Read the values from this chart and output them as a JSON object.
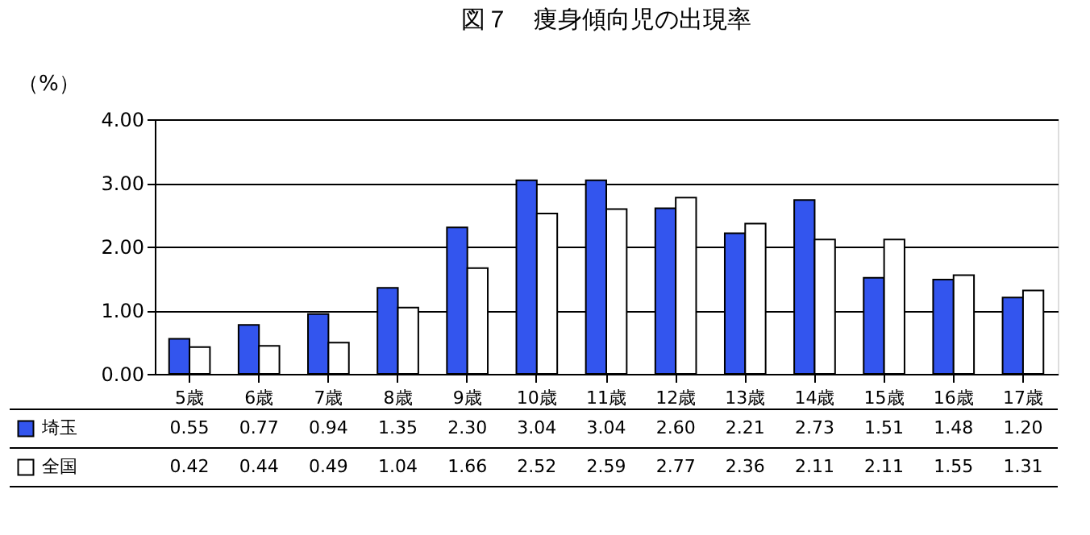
{
  "chart_data": {
    "type": "bar",
    "title": "図７　痩身傾向児の出現率",
    "ylabel": "（%）",
    "categories": [
      "5歳",
      "6歳",
      "7歳",
      "8歳",
      "9歳",
      "10歳",
      "11歳",
      "12歳",
      "13歳",
      "14歳",
      "15歳",
      "16歳",
      "17歳"
    ],
    "series": [
      {
        "name": "埼玉",
        "color": "#3355ee",
        "values": [
          0.55,
          0.77,
          0.94,
          1.35,
          2.3,
          3.04,
          3.04,
          2.6,
          2.21,
          2.73,
          1.51,
          1.48,
          1.2
        ],
        "value_labels": [
          "0.55",
          "0.77",
          "0.94",
          "1.35",
          "2.30",
          "3.04",
          "3.04",
          "2.60",
          "2.21",
          "2.73",
          "1.51",
          "1.48",
          "1.20"
        ]
      },
      {
        "name": "全国",
        "color": "#ffffff",
        "values": [
          0.42,
          0.44,
          0.49,
          1.04,
          1.66,
          2.52,
          2.59,
          2.77,
          2.36,
          2.11,
          2.11,
          1.55,
          1.31
        ],
        "value_labels": [
          "0.42",
          "0.44",
          "0.49",
          "1.04",
          "1.66",
          "2.52",
          "2.59",
          "2.77",
          "2.36",
          "2.11",
          "2.11",
          "1.55",
          "1.31"
        ]
      }
    ],
    "ylim": [
      0,
      4
    ],
    "yticks": [
      {
        "value": 0,
        "label": "0.00"
      },
      {
        "value": 1,
        "label": "1.00"
      },
      {
        "value": 2,
        "label": "2.00"
      },
      {
        "value": 3,
        "label": "3.00"
      },
      {
        "value": 4,
        "label": "4.00"
      }
    ],
    "grid": "y",
    "legend": "bottom"
  }
}
